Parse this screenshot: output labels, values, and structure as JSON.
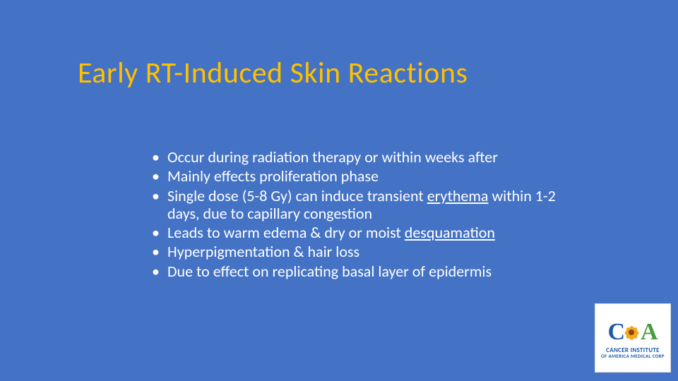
{
  "slide": {
    "title": "Early RT-Induced Skin Reactions",
    "background_color": "#4472c4",
    "title_color": "#ffc000",
    "text_color": "#ffffff",
    "title_fontsize": 42,
    "body_fontsize": 22,
    "bullets": [
      {
        "pre": "Occur during radiation therapy or within weeks after",
        "u": "",
        "post": ""
      },
      {
        "pre": "Mainly effects proliferation phase",
        "u": "",
        "post": ""
      },
      {
        "pre": "Single dose (5-8 Gy) can induce transient ",
        "u": "erythema",
        "post": " within 1-2 days, due to capillary congestion"
      },
      {
        "pre": "Leads to warm edema & dry or moist ",
        "u": "desquamation",
        "post": ""
      },
      {
        "pre": "Hyperpigmentation & hair loss",
        "u": "",
        "post": ""
      },
      {
        "pre": "Due to effect on replicating basal layer of epidermis",
        "u": "",
        "post": ""
      }
    ]
  },
  "logo": {
    "letter_c": "C",
    "letter_a": "A",
    "line1": "CANCER INSTITUTE",
    "line2": "OF AMERICA MEDICAL CORP",
    "c_color": "#1e5aa8",
    "a_color": "#4a9b3e",
    "petal_color": "#f5a623",
    "text_color": "#1e5aa8"
  }
}
